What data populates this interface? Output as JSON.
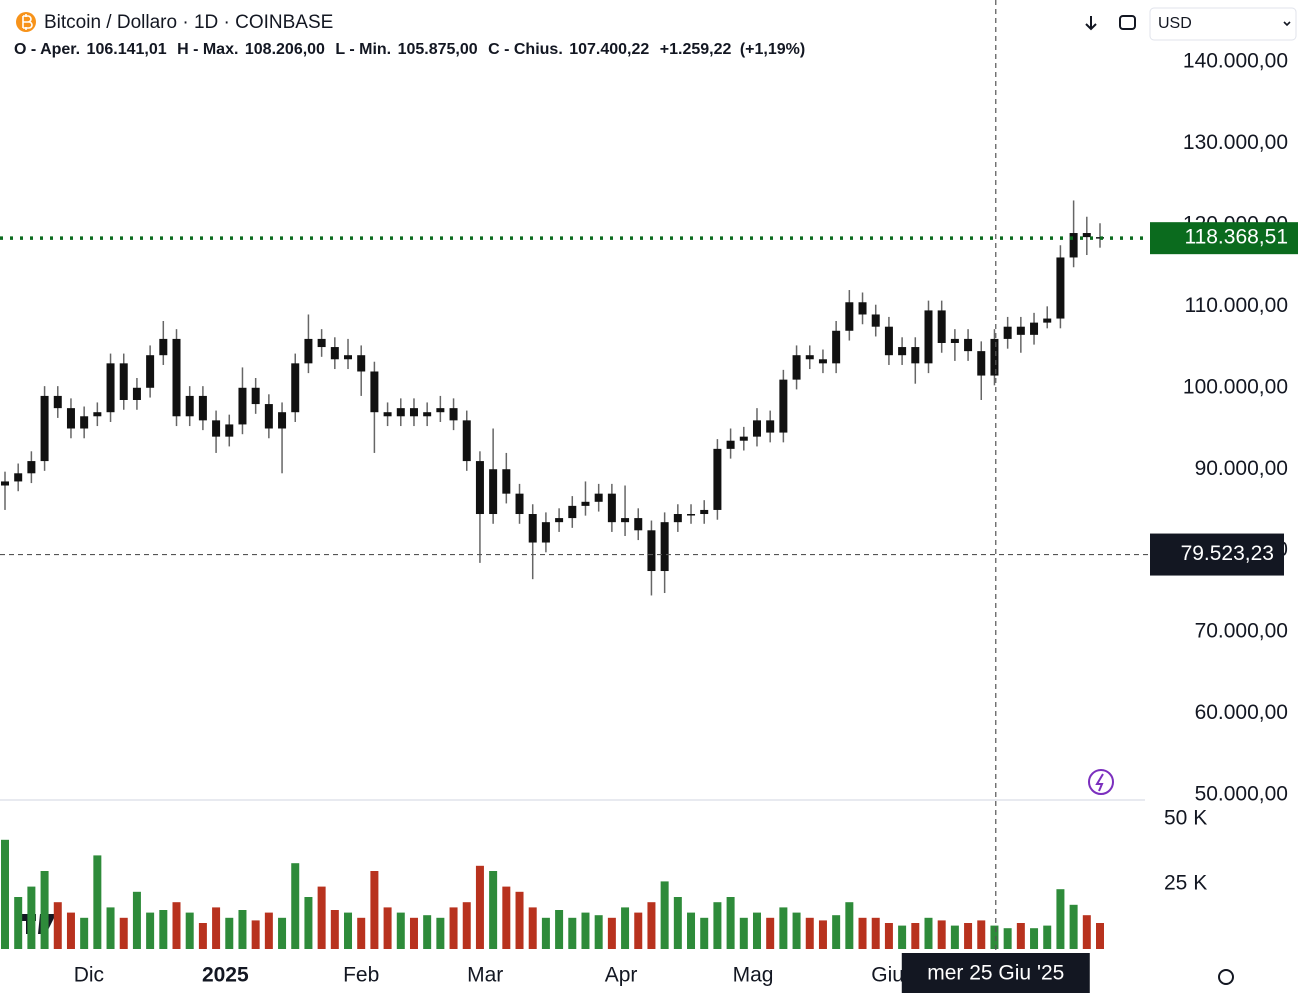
{
  "chart_data": {
    "type": "candlestick",
    "title": "Bitcoin / Dollaro · 1D · COINBASE",
    "ohlc": [
      "O - Aper.",
      "106.141,01",
      "H - Max.",
      "108.206,00",
      "L - Min.",
      "105.875,00",
      "C - Chius.",
      "107.400,22",
      "+1.259,22",
      "(+1,19%)"
    ],
    "currency": "USD",
    "open": [
      88000,
      88500,
      89500,
      91000,
      99000,
      97500,
      95000,
      96500,
      97000,
      103000,
      98500,
      100000,
      104000,
      106000,
      96500,
      99000,
      96000,
      94000,
      95500,
      100000,
      98000,
      95000,
      97000,
      103000,
      106000,
      105000,
      103500,
      104000,
      102000,
      97000,
      96500,
      97500,
      96500,
      97000,
      97500,
      96000,
      91000,
      84500,
      90000,
      87000,
      84500,
      81000,
      83500,
      84000,
      85500,
      86000,
      87000,
      83500,
      84000,
      82500,
      77500,
      83500,
      84500,
      84500,
      85000,
      92500,
      93500,
      94000,
      96000,
      94500,
      101000,
      104000,
      103500,
      103000,
      107000,
      110500,
      109000,
      107500,
      104000,
      105000,
      103000,
      109500,
      105500,
      106000,
      104500,
      101500,
      106000,
      107500,
      106500,
      108000,
      108500,
      116000,
      119000,
      118500
    ],
    "high": [
      89700,
      90700,
      92200,
      100200,
      100200,
      98700,
      97700,
      98200,
      104200,
      104200,
      101200,
      105200,
      108200,
      107200,
      100200,
      100200,
      97200,
      96700,
      102500,
      101200,
      99200,
      98200,
      104200,
      109000,
      107200,
      106200,
      106000,
      105200,
      103200,
      98200,
      98700,
      98700,
      98200,
      99000,
      98700,
      97200,
      92200,
      95000,
      92000,
      88200,
      85700,
      84700,
      85200,
      86700,
      88500,
      88200,
      88200,
      88000,
      85200,
      83700,
      84700,
      85700,
      85700,
      86200,
      93700,
      95000,
      95200,
      97500,
      97200,
      102200,
      105200,
      105200,
      104700,
      108200,
      112000,
      111700,
      110200,
      108700,
      106200,
      106200,
      110700,
      110700,
      107200,
      107200,
      105700,
      107200,
      108700,
      108700,
      109200,
      110000,
      117500,
      123000,
      121000,
      120200
    ],
    "low": [
      85000,
      87300,
      88300,
      89800,
      96300,
      93800,
      93800,
      95300,
      95800,
      97300,
      97300,
      98800,
      102800,
      95300,
      95300,
      94800,
      92000,
      92800,
      94300,
      96800,
      93800,
      89500,
      95800,
      101800,
      103800,
      102300,
      102300,
      99000,
      92000,
      95300,
      95300,
      95300,
      95300,
      95800,
      94800,
      89800,
      78500,
      83300,
      85800,
      83300,
      76500,
      79800,
      82300,
      82800,
      84300,
      84800,
      82300,
      81800,
      81300,
      74500,
      74800,
      82300,
      83300,
      83300,
      83800,
      91300,
      92300,
      92800,
      93300,
      93300,
      99800,
      102300,
      101800,
      101800,
      105800,
      107800,
      106300,
      102800,
      102800,
      100500,
      101800,
      104300,
      103300,
      103300,
      98500,
      100300,
      104800,
      104300,
      105300,
      107300,
      107300,
      114800,
      116300,
      117200
    ],
    "close": [
      88500,
      89500,
      91000,
      99000,
      97500,
      95000,
      96500,
      97000,
      103000,
      98500,
      100000,
      104000,
      106000,
      96500,
      99000,
      96000,
      94000,
      95500,
      100000,
      98000,
      95000,
      97000,
      103000,
      106000,
      105000,
      103500,
      104000,
      102000,
      97000,
      96500,
      97500,
      96500,
      97000,
      97500,
      96000,
      91000,
      84500,
      90000,
      87000,
      84500,
      81000,
      83500,
      84000,
      85500,
      86000,
      87000,
      83500,
      84000,
      82500,
      77500,
      83500,
      84500,
      84500,
      85000,
      92500,
      93500,
      94000,
      96000,
      94500,
      101000,
      104000,
      103500,
      103000,
      107000,
      110500,
      109000,
      107500,
      104000,
      105000,
      103000,
      109500,
      105500,
      106000,
      104500,
      101500,
      106000,
      107500,
      106500,
      108000,
      108500,
      116000,
      119000,
      118500,
      118368.51
    ],
    "volume": [
      42000,
      20000,
      24000,
      30000,
      18000,
      14000,
      12000,
      36000,
      16000,
      12000,
      22000,
      14000,
      15000,
      18000,
      14000,
      10000,
      16000,
      12000,
      15000,
      11000,
      14000,
      12000,
      33000,
      20000,
      24000,
      15000,
      14000,
      12000,
      30000,
      16000,
      14000,
      12000,
      13000,
      12000,
      16000,
      18000,
      32000,
      30000,
      24000,
      22000,
      16000,
      12000,
      15000,
      12000,
      14000,
      13000,
      12000,
      16000,
      14000,
      18000,
      26000,
      20000,
      14000,
      12000,
      18000,
      20000,
      12000,
      14000,
      12000,
      16000,
      14000,
      12000,
      11000,
      13000,
      18000,
      12000,
      12000,
      10000,
      9000,
      10000,
      12000,
      11000,
      9000,
      10000,
      11000,
      9000,
      8000,
      10000,
      8000,
      9000,
      23000,
      17000,
      13000,
      10000
    ],
    "candle_color": "#111111",
    "wick_color": "#666666",
    "volume_up_color": "#2e8b3a",
    "volume_down_color": "#b8321e",
    "xlim": [
      0,
      83
    ],
    "xticks": [
      {
        "value": 6.36,
        "label": "Dic"
      },
      {
        "value": 16.7,
        "label": "2025"
      },
      {
        "value": 27.0,
        "label": "Feb"
      },
      {
        "value": 36.4,
        "label": "Mar"
      },
      {
        "value": 46.7,
        "label": "Apr"
      },
      {
        "value": 56.7,
        "label": "Mag"
      },
      {
        "value": 66.9,
        "label": "Giu"
      }
    ],
    "ylim": [
      50000,
      140000
    ],
    "yticks": [
      {
        "value": 140000,
        "label": "140.000,00"
      },
      {
        "value": 130000,
        "label": "130.000,00"
      },
      {
        "value": 120000,
        "label": "120.000,00"
      },
      {
        "value": 110000,
        "label": "110.000,00"
      },
      {
        "value": 100000,
        "label": "100.000,00"
      },
      {
        "value": 90000,
        "label": "90.000,00"
      },
      {
        "value": 80000,
        "label": "80.000,00"
      },
      {
        "value": 70000,
        "label": "70.000,00"
      },
      {
        "value": 60000,
        "label": "60.000,00"
      },
      {
        "value": 50000,
        "label": "50.000,00"
      }
    ],
    "volume_ylim": [
      0,
      50000
    ],
    "volume_yticks": [
      {
        "value": 50000,
        "label": "50 K"
      },
      {
        "value": 25000,
        "label": "25 K"
      }
    ],
    "last_price": {
      "value": 118368.51,
      "label": "118.368,51",
      "color": "#0b6b1e"
    },
    "crosshair": {
      "x": 75.1,
      "price": 79523.23,
      "price_label": "79.523,23",
      "date_label": "mer 25 Giu '25"
    }
  }
}
